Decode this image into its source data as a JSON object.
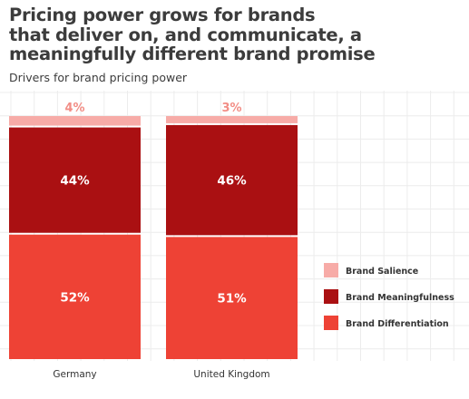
{
  "chart_data": {
    "type": "bar",
    "stacked": true,
    "title_lines": [
      "Pricing power grows for brands",
      "that deliver on, and communicate, a",
      "meaningfully different brand promise"
    ],
    "subtitle": "Drivers for brand pricing power",
    "categories": [
      "Germany",
      "United Kingdom"
    ],
    "series": [
      {
        "name": "Brand Differentiation",
        "values": [
          52,
          51
        ],
        "labels": [
          "52%",
          "51%"
        ],
        "color": "#ee4235"
      },
      {
        "name": "Brand Meaningfulness",
        "values": [
          44,
          46
        ],
        "labels": [
          "44%",
          "46%"
        ],
        "color": "#aa1012"
      },
      {
        "name": "Brand Salience",
        "values": [
          4,
          3
        ],
        "labels": [
          "4%",
          "3%"
        ],
        "color": "#f7aba7"
      }
    ],
    "legend": {
      "placement": "right",
      "order": [
        "Brand Salience",
        "Brand Meaningfulness",
        "Brand Differentiation"
      ]
    },
    "ylim": [
      0,
      100
    ],
    "grid": true,
    "colors": {
      "grid": "#ececec",
      "label_on_bar": "#ffffff",
      "salience_label": "#f28e86",
      "category_text": "#333333",
      "legend_text": "#333333"
    }
  }
}
